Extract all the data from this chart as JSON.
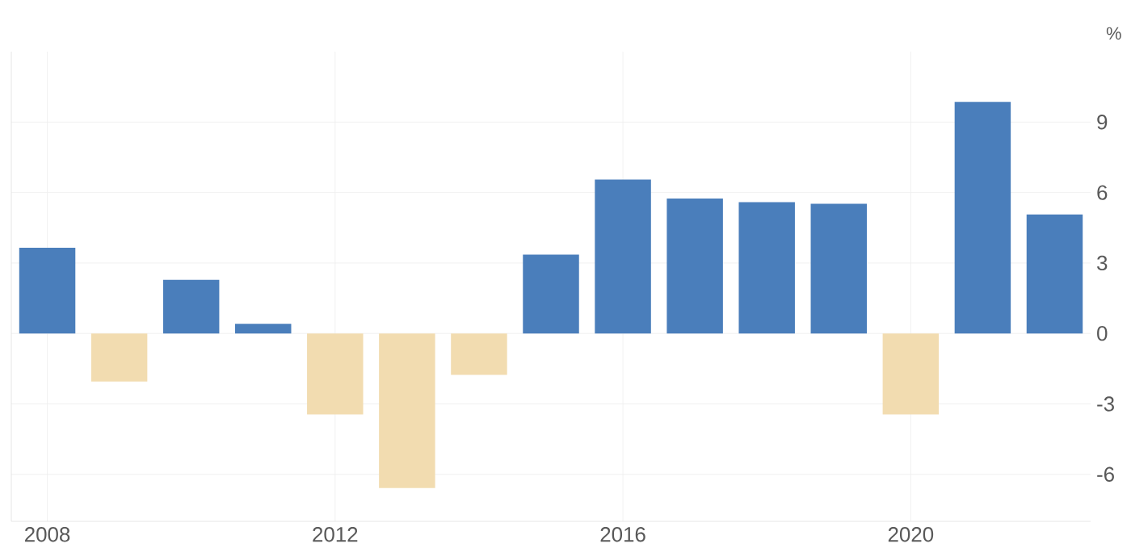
{
  "chart_data": {
    "type": "bar",
    "ylabel": "%",
    "x": [
      2008,
      2009,
      2010,
      2011,
      2012,
      2013,
      2014,
      2015,
      2016,
      2017,
      2018,
      2019,
      2020,
      2021,
      2022
    ],
    "values": [
      3.65,
      -2.05,
      2.28,
      0.41,
      -3.45,
      -6.58,
      -1.76,
      3.36,
      6.55,
      5.75,
      5.59,
      5.52,
      -3.45,
      9.86,
      5.07
    ],
    "colors": [
      "#4a7ebb",
      "#f2dcb0",
      "#4a7ebb",
      "#4a7ebb",
      "#f2dcb0",
      "#f2dcb0",
      "#f2dcb0",
      "#4a7ebb",
      "#4a7ebb",
      "#4a7ebb",
      "#4a7ebb",
      "#4a7ebb",
      "#f2dcb0",
      "#4a7ebb",
      "#4a7ebb"
    ],
    "xlim": [
      2007.5,
      2022.5
    ],
    "xticks": [
      2008,
      2012,
      2016,
      2020
    ],
    "ylim": [
      -8,
      12
    ],
    "yticks": [
      -6,
      -3,
      0,
      3,
      6,
      9
    ],
    "grid": true
  }
}
